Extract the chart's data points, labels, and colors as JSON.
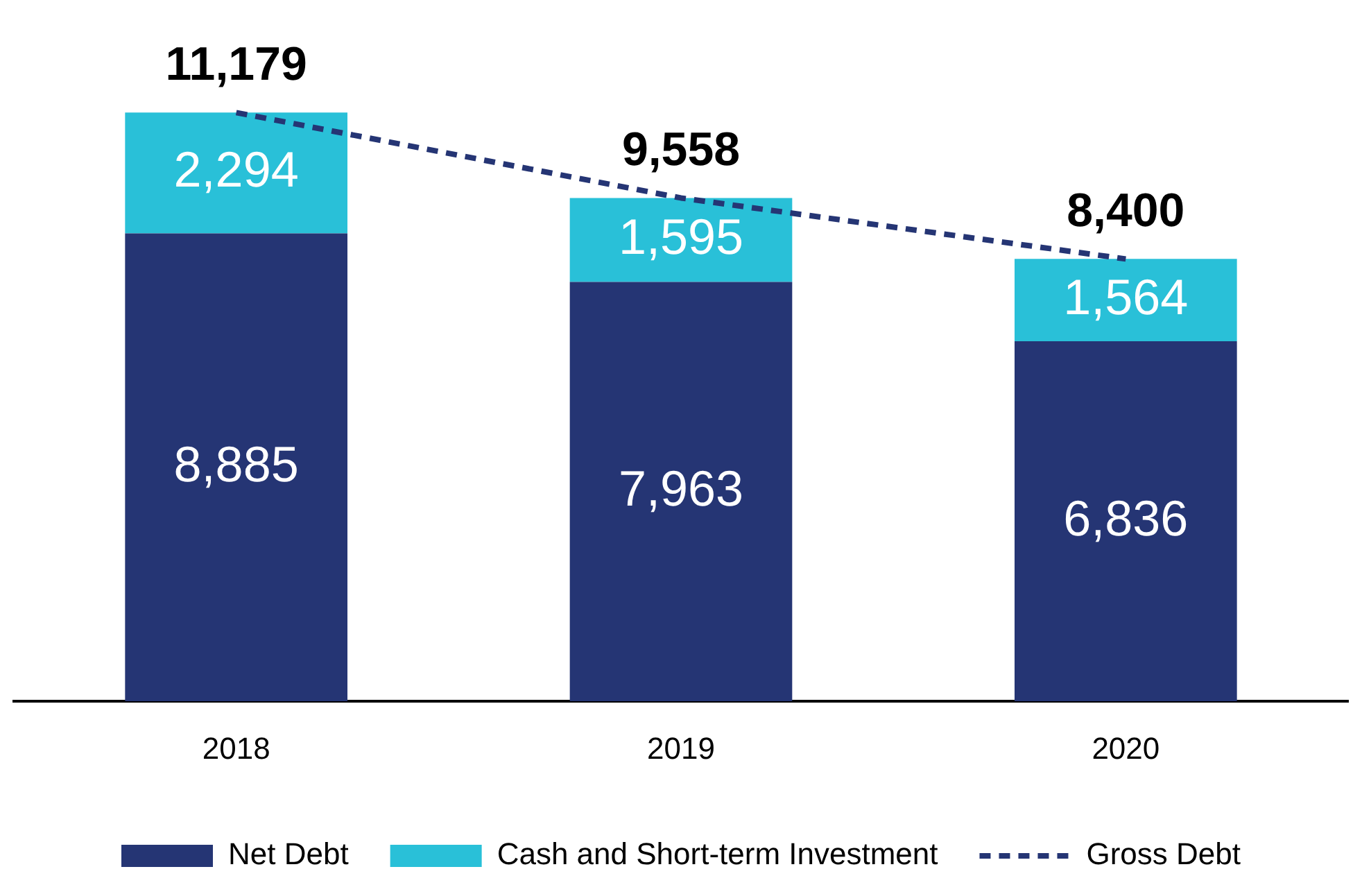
{
  "chart_data": {
    "type": "bar",
    "stacked": true,
    "categories": [
      "2018",
      "2019",
      "2020"
    ],
    "series": [
      {
        "name": "Net Debt",
        "color": "#253574",
        "values": [
          8885,
          7963,
          6836
        ],
        "value_labels": [
          "8,885",
          "7,963",
          "6,836"
        ]
      },
      {
        "name": "Cash and Short-term Investment",
        "color": "#29c0d8",
        "values": [
          2294,
          1595,
          1564
        ],
        "value_labels": [
          "2,294",
          "1,595",
          "1,564"
        ]
      },
      {
        "name": "Gross Debt",
        "type": "line",
        "color": "#253574",
        "line_style": "dashed",
        "marker": "none",
        "values": [
          11179,
          9558,
          8400
        ],
        "value_labels": [
          "11,179",
          "9,558",
          "8,400"
        ]
      }
    ],
    "legend": "bottom",
    "grid": false
  }
}
